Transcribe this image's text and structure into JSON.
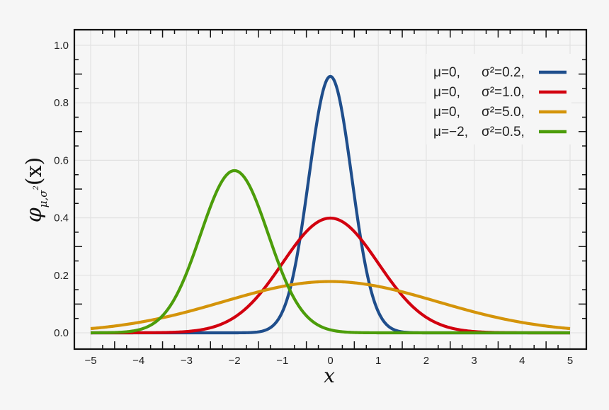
{
  "chart_data": {
    "type": "line",
    "title": "",
    "xlabel": "x",
    "ylabel": "φ_{μ,σ²}(x)",
    "xlim": [
      -5,
      5
    ],
    "ylim": [
      0,
      1.0
    ],
    "x_ticks": [
      "−5",
      "−4",
      "−3",
      "−2",
      "−1",
      "0",
      "1",
      "2",
      "3",
      "4",
      "5"
    ],
    "y_ticks": [
      "0.0",
      "0.2",
      "0.4",
      "0.6",
      "0.8",
      "1.0"
    ],
    "grid": true,
    "legend_position": "upper right",
    "x": [
      -5,
      -4.5,
      -4,
      -3.5,
      -3,
      -2.5,
      -2,
      -1.5,
      -1,
      -0.5,
      0,
      0.5,
      1,
      1.5,
      2,
      2.5,
      3,
      3.5,
      4,
      4.5,
      5
    ],
    "series": [
      {
        "name": "μ=0, σ²=0.2",
        "mu": 0,
        "sigma2": 0.2,
        "color": "#1f4e8c",
        "values": [
          0,
          0,
          0,
          0,
          0,
          0,
          0,
          0.003,
          0.073,
          0.479,
          0.892,
          0.479,
          0.073,
          0.003,
          0,
          0,
          0,
          0,
          0,
          0,
          0
        ]
      },
      {
        "name": "μ=0, σ²=1.0",
        "mu": 0,
        "sigma2": 1.0,
        "color": "#d2000f",
        "values": [
          0,
          0,
          0,
          0.001,
          0.004,
          0.018,
          0.054,
          0.13,
          0.242,
          0.352,
          0.399,
          0.352,
          0.242,
          0.13,
          0.054,
          0.018,
          0.004,
          0.001,
          0,
          0,
          0
        ]
      },
      {
        "name": "μ=0, σ²=5.0",
        "mu": 0,
        "sigma2": 5.0,
        "color": "#d4940a",
        "values": [
          0.014,
          0.024,
          0.036,
          0.052,
          0.073,
          0.095,
          0.12,
          0.143,
          0.161,
          0.174,
          0.178,
          0.174,
          0.161,
          0.143,
          0.12,
          0.095,
          0.073,
          0.052,
          0.036,
          0.024,
          0.014
        ]
      },
      {
        "name": "μ=−2, σ²=0.5",
        "mu": -2,
        "sigma2": 0.5,
        "color": "#4c9d0a",
        "values": [
          0,
          0,
          0.01,
          0.059,
          0.208,
          0.439,
          0.564,
          0.439,
          0.208,
          0.059,
          0.01,
          0.001,
          0,
          0,
          0,
          0,
          0,
          0,
          0,
          0,
          0
        ]
      }
    ]
  },
  "legend": {
    "rows": [
      {
        "mu": "μ=0,",
        "sigma": "σ²=0.2,",
        "color": "#1f4e8c"
      },
      {
        "mu": "μ=0,",
        "sigma": "σ²=1.0,",
        "color": "#d2000f"
      },
      {
        "mu": "μ=0,",
        "sigma": "σ²=5.0,",
        "color": "#d4940a"
      },
      {
        "mu": "μ=−2,",
        "sigma": "σ²=0.5,",
        "color": "#4c9d0a"
      }
    ]
  },
  "labels": {
    "x_axis": "x",
    "y_axis_main": "φ",
    "y_axis_sub": "μ,σ",
    "y_axis_sup": "2",
    "y_axis_arg": "(x)"
  }
}
